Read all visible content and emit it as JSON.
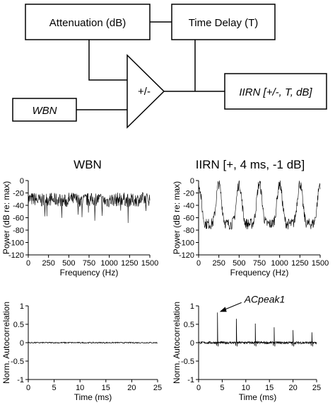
{
  "diagram": {
    "blocks": {
      "attenuation": "Attenuation (dB)",
      "time_delay": "Time Delay (T)",
      "adder": "+/-",
      "wbn_input": "WBN",
      "iirn_output": "IIRN [+/-, T, dB]"
    }
  },
  "chart_data": [
    {
      "id": "wbn_spectrum",
      "type": "line",
      "title": "WBN",
      "xlabel": "Frequency (Hz)",
      "ylabel": "Power (dB re: max)",
      "xlim": [
        0,
        1500
      ],
      "ylim": [
        -120,
        0
      ],
      "xticks": [
        "0",
        "250",
        "500",
        "750",
        "1000",
        "1250",
        "1500"
      ],
      "yticks": [
        "0",
        "-20",
        "-40",
        "-60",
        "-80",
        "-100",
        "-120"
      ],
      "description_of_data": "flat noise spectrum",
      "x": [
        0,
        100,
        200,
        300,
        400,
        500,
        600,
        700,
        800,
        900,
        1000,
        1100,
        1200,
        1300,
        1400,
        1500
      ],
      "y": [
        -30,
        -32,
        -30,
        -31,
        -33,
        -30,
        -32,
        -31,
        -30,
        -33,
        -31,
        -30,
        -32,
        -31,
        -30,
        -31
      ]
    },
    {
      "id": "iirn_spectrum",
      "type": "line",
      "title": "IIRN [+, 4 ms, -1 dB]",
      "xlabel": "Frequency (Hz)",
      "ylabel": "Power (dB re: max)",
      "xlim": [
        0,
        1500
      ],
      "ylim": [
        -120,
        0
      ],
      "xticks": [
        "0",
        "250",
        "500",
        "750",
        "1000",
        "1250",
        "1500"
      ],
      "yticks": [
        "0",
        "-20",
        "-40",
        "-60",
        "-80",
        "-100",
        "-120"
      ],
      "peaks_x": [
        250,
        500,
        750,
        1000,
        1250
      ],
      "peak_level": -5,
      "trough_level": -70
    },
    {
      "id": "wbn_autocorr",
      "type": "line",
      "xlabel": "Time (ms)",
      "ylabel": "Norm. Autocorrelation",
      "xlim": [
        0,
        25
      ],
      "ylim": [
        -1,
        1
      ],
      "xticks": [
        "0",
        "5",
        "10",
        "15",
        "20",
        "25"
      ],
      "yticks": [
        "1",
        "0.5",
        "0",
        "-0.5",
        "-1"
      ],
      "x": [
        0,
        5,
        10,
        15,
        20,
        25
      ],
      "y": [
        0,
        0,
        0,
        0,
        0,
        0
      ]
    },
    {
      "id": "iirn_autocorr",
      "type": "line",
      "xlabel": "Time (ms)",
      "ylabel": "Norm. Autocorrelation",
      "xlim": [
        0,
        25
      ],
      "ylim": [
        -1,
        1
      ],
      "xticks": [
        "0",
        "5",
        "10",
        "15",
        "20",
        "25"
      ],
      "yticks": [
        "1",
        "0.5",
        "0",
        "-0.5",
        "-1"
      ],
      "peaks_x": [
        4,
        8,
        12,
        16,
        20,
        24
      ],
      "peaks_y": [
        0.82,
        0.65,
        0.52,
        0.42,
        0.34,
        0.28
      ],
      "annotation": "ACpeak1"
    }
  ]
}
